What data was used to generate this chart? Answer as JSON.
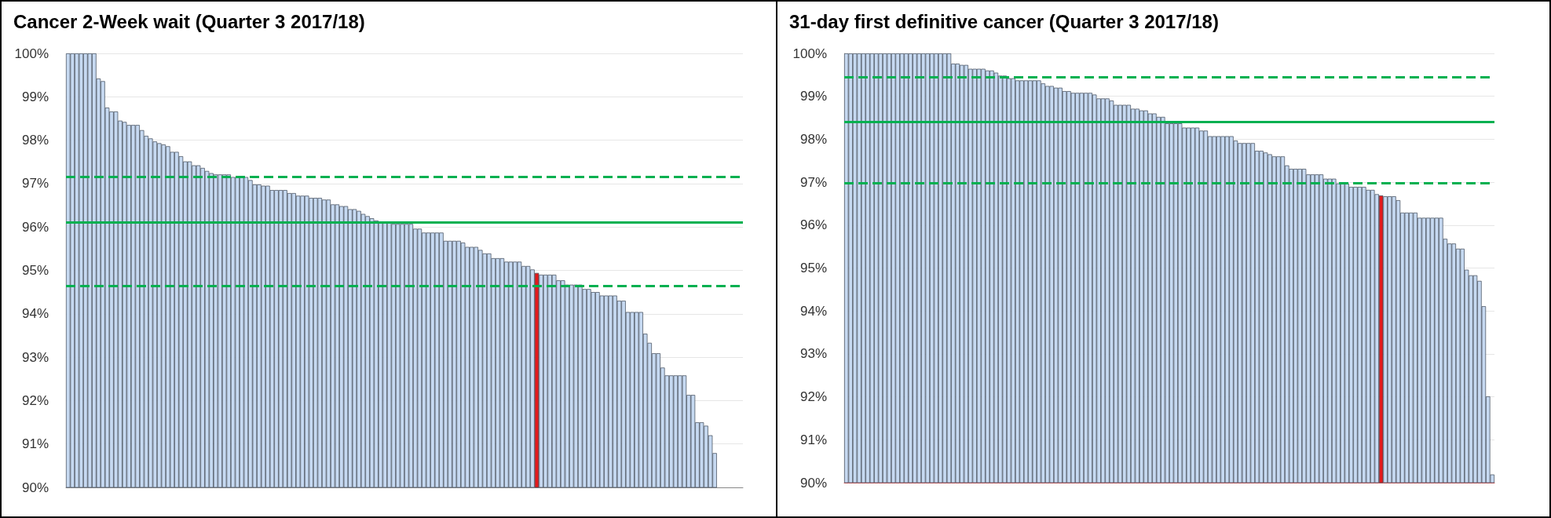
{
  "chart_data": [
    {
      "type": "bar",
      "title": "Cancer 2-Week wait (Quarter 3 2017/18)",
      "categories": [
        null,
        null,
        null,
        null,
        null,
        null,
        null,
        null,
        null,
        null,
        null,
        null,
        null,
        null,
        null,
        null,
        null,
        null,
        null,
        null,
        null,
        null,
        null,
        null,
        null,
        null,
        null,
        null,
        null,
        null,
        null,
        null,
        null,
        null,
        null,
        null,
        null,
        null,
        null,
        null,
        null,
        null,
        null,
        null,
        null,
        null,
        null,
        null,
        null,
        null,
        null,
        null,
        null,
        null,
        null,
        null,
        null,
        null,
        null,
        null,
        null,
        null,
        null,
        null,
        null,
        null,
        null,
        null,
        null,
        null,
        null,
        null,
        null,
        null,
        null,
        null,
        null,
        null,
        null,
        null,
        null,
        null,
        null,
        null,
        null,
        null,
        null,
        null,
        null,
        null,
        null,
        null,
        null,
        null,
        null,
        null,
        null,
        null,
        null,
        null,
        null,
        null,
        null,
        null,
        null,
        null,
        null,
        null,
        null,
        null,
        null,
        null,
        null,
        null,
        null,
        null,
        null,
        null,
        null,
        null,
        null,
        null,
        null,
        null,
        null,
        null,
        null,
        null,
        null,
        null,
        null,
        null,
        null,
        null,
        null,
        null,
        null,
        null,
        null,
        null,
        null,
        null,
        null,
        null,
        null,
        null,
        null,
        null,
        null,
        null,
        null,
        null,
        null,
        null,
        null,
        null
      ],
      "values": [
        100,
        100,
        100,
        100,
        100,
        100,
        100,
        99.42,
        99.36,
        98.75,
        98.66,
        98.66,
        98.45,
        98.42,
        98.35,
        98.35,
        98.35,
        98.23,
        98.1,
        98.04,
        97.97,
        97.93,
        97.9,
        97.86,
        97.73,
        97.73,
        97.63,
        97.51,
        97.51,
        97.42,
        97.42,
        97.36,
        97.29,
        97.24,
        97.21,
        97.21,
        97.21,
        97.21,
        97.15,
        97.15,
        97.15,
        97.15,
        97.08,
        96.98,
        96.98,
        96.95,
        96.95,
        96.85,
        96.85,
        96.85,
        96.85,
        96.78,
        96.78,
        96.72,
        96.72,
        96.72,
        96.67,
        96.67,
        96.67,
        96.63,
        96.63,
        96.52,
        96.52,
        96.48,
        96.48,
        96.41,
        96.41,
        96.37,
        96.3,
        96.25,
        96.2,
        96.15,
        96.12,
        96.12,
        96.12,
        96.07,
        96.07,
        96.07,
        96.07,
        96.07,
        95.96,
        95.96,
        95.87,
        95.87,
        95.87,
        95.87,
        95.87,
        95.68,
        95.68,
        95.68,
        95.68,
        95.64,
        95.54,
        95.54,
        95.54,
        95.47,
        95.39,
        95.39,
        95.28,
        95.28,
        95.28,
        95.2,
        95.2,
        95.2,
        95.2,
        95.1,
        95.1,
        95.02,
        94.94,
        94.9,
        94.9,
        94.9,
        94.9,
        94.77,
        94.77,
        94.67,
        94.67,
        94.67,
        94.67,
        94.57,
        94.57,
        94.5,
        94.5,
        94.42,
        94.42,
        94.42,
        94.42,
        94.3,
        94.3,
        94.04,
        94.04,
        94.04,
        94.04,
        93.54,
        93.33,
        93.09,
        93.09,
        92.76,
        92.58,
        92.58,
        92.58,
        92.58,
        92.58,
        92.13,
        92.13,
        91.5,
        91.5,
        91.42,
        91.2,
        90.79,
        null,
        null,
        null,
        null,
        null,
        null
      ],
      "colors": [
        "#c6d9f1",
        "#c6d9f1",
        "#c6d9f1",
        "#c6d9f1",
        "#c6d9f1",
        "#c6d9f1",
        "#c6d9f1",
        "#c6d9f1",
        "#c6d9f1",
        "#c6d9f1",
        "#c6d9f1",
        "#c6d9f1",
        "#c6d9f1",
        "#c6d9f1",
        "#c6d9f1",
        "#c6d9f1",
        "#c6d9f1",
        "#c6d9f1",
        "#c6d9f1",
        "#c6d9f1",
        "#c6d9f1",
        "#c6d9f1",
        "#c6d9f1",
        "#c6d9f1",
        "#c6d9f1",
        "#c6d9f1",
        "#c6d9f1",
        "#c6d9f1",
        "#c6d9f1",
        "#c6d9f1",
        "#c6d9f1",
        "#c6d9f1",
        "#c6d9f1",
        "#c6d9f1",
        "#c6d9f1",
        "#c6d9f1",
        "#c6d9f1",
        "#c6d9f1",
        "#c6d9f1",
        "#c6d9f1",
        "#c6d9f1",
        "#c6d9f1",
        "#c6d9f1",
        "#c6d9f1",
        "#c6d9f1",
        "#c6d9f1",
        "#c6d9f1",
        "#c6d9f1",
        "#c6d9f1",
        "#c6d9f1",
        "#c6d9f1",
        "#c6d9f1",
        "#c6d9f1",
        "#c6d9f1",
        "#c6d9f1",
        "#c6d9f1",
        "#c6d9f1",
        "#c6d9f1",
        "#c6d9f1",
        "#c6d9f1",
        "#c6d9f1",
        "#c6d9f1",
        "#c6d9f1",
        "#c6d9f1",
        "#c6d9f1",
        "#c6d9f1",
        "#c6d9f1",
        "#c6d9f1",
        "#c6d9f1",
        "#c6d9f1",
        "#c6d9f1",
        "#c6d9f1",
        "#c6d9f1",
        "#c6d9f1",
        "#c6d9f1",
        "#c6d9f1",
        "#c6d9f1",
        "#c6d9f1",
        "#c6d9f1",
        "#c6d9f1",
        "#c6d9f1",
        "#c6d9f1",
        "#c6d9f1",
        "#c6d9f1",
        "#c6d9f1",
        "#c6d9f1",
        "#c6d9f1",
        "#c6d9f1",
        "#c6d9f1",
        "#c6d9f1",
        "#c6d9f1",
        "#c6d9f1",
        "#c6d9f1",
        "#c6d9f1",
        "#c6d9f1",
        "#c6d9f1",
        "#c6d9f1",
        "#c6d9f1",
        "#c6d9f1",
        "#c6d9f1",
        "#c6d9f1",
        "#c6d9f1",
        "#c6d9f1",
        "#c6d9f1",
        "#c6d9f1",
        "#c6d9f1",
        "#c6d9f1",
        "#c6d9f1",
        "#e31a1c",
        "#c6d9f1",
        "#c6d9f1",
        "#c6d9f1",
        "#c6d9f1",
        "#c6d9f1",
        "#c6d9f1",
        "#c6d9f1",
        "#c6d9f1",
        "#c6d9f1",
        "#c6d9f1",
        "#c6d9f1",
        "#c6d9f1",
        "#c6d9f1",
        "#c6d9f1",
        "#c6d9f1",
        "#c6d9f1",
        "#c6d9f1",
        "#c6d9f1",
        "#c6d9f1",
        "#c6d9f1",
        "#c6d9f1",
        "#c6d9f1",
        "#c6d9f1",
        "#c6d9f1",
        "#c6d9f1",
        "#c6d9f1",
        "#c6d9f1",
        "#c6d9f1",
        "#c6d9f1",
        "#c6d9f1",
        "#c6d9f1",
        "#c6d9f1",
        "#c6d9f1",
        "#c6d9f1",
        "#c6d9f1",
        "#c6d9f1",
        "#c6d9f1",
        "#c6d9f1",
        "#c6d9f1",
        "#c6d9f1",
        "#c6d9f1",
        "#c6d9f1",
        "#c6d9f1",
        "#c6d9f1",
        "#c6d9f1",
        "#c6d9f1",
        "#c6d9f1"
      ],
      "ylim": [
        90,
        100
      ],
      "yticks": [
        {
          "value": 90,
          "label": "90%"
        },
        {
          "value": 91,
          "label": "91%"
        },
        {
          "value": 92,
          "label": "92%"
        },
        {
          "value": 93,
          "label": "93%"
        },
        {
          "value": 94,
          "label": "94%"
        },
        {
          "value": 95,
          "label": "95%"
        },
        {
          "value": 96,
          "label": "96%"
        },
        {
          "value": 97,
          "label": "97%"
        },
        {
          "value": 98,
          "label": "98%"
        },
        {
          "value": 99,
          "label": "99%"
        },
        {
          "value": 100,
          "label": "100%"
        }
      ],
      "grid": "y",
      "ref_lines": [
        {
          "axis": "y",
          "value": 97.15,
          "color": "#00b050",
          "line_style": "dashed"
        },
        {
          "axis": "y",
          "value": 96.1,
          "color": "#00b050",
          "line_style": "solid"
        },
        {
          "axis": "y",
          "value": 94.65,
          "color": "#00b050",
          "line_style": "dashed"
        }
      ]
    },
    {
      "type": "bar",
      "title": "31-day first definitive cancer (Quarter 3 2017/18)",
      "categories": [
        null,
        null,
        null,
        null,
        null,
        null,
        null,
        null,
        null,
        null,
        null,
        null,
        null,
        null,
        null,
        null,
        null,
        null,
        null,
        null,
        null,
        null,
        null,
        null,
        null,
        null,
        null,
        null,
        null,
        null,
        null,
        null,
        null,
        null,
        null,
        null,
        null,
        null,
        null,
        null,
        null,
        null,
        null,
        null,
        null,
        null,
        null,
        null,
        null,
        null,
        null,
        null,
        null,
        null,
        null,
        null,
        null,
        null,
        null,
        null,
        null,
        null,
        null,
        null,
        null,
        null,
        null,
        null,
        null,
        null,
        null,
        null,
        null,
        null,
        null,
        null,
        null,
        null,
        null,
        null,
        null,
        null,
        null,
        null,
        null,
        null,
        null,
        null,
        null,
        null,
        null,
        null,
        null,
        null,
        null,
        null,
        null,
        null,
        null,
        null,
        null,
        null,
        null,
        null,
        null,
        null,
        null,
        null,
        null,
        null,
        null,
        null,
        null,
        null,
        null,
        null,
        null,
        null,
        null,
        null,
        null,
        null,
        null,
        null,
        null,
        null,
        null,
        null,
        null,
        null,
        null,
        null,
        null,
        null,
        null,
        null,
        null,
        null,
        null,
        null,
        null,
        null,
        null,
        null,
        null,
        null,
        null,
        null,
        null,
        null,
        null,
        null
      ],
      "values": [
        100,
        100,
        100,
        100,
        100,
        100,
        100,
        100,
        100,
        100,
        100,
        100,
        100,
        100,
        100,
        100,
        100,
        100,
        100,
        100,
        100,
        100,
        100,
        100,
        100,
        99.76,
        99.76,
        99.73,
        99.73,
        99.64,
        99.64,
        99.64,
        99.64,
        99.6,
        99.6,
        99.55,
        99.48,
        99.48,
        99.42,
        99.42,
        99.37,
        99.37,
        99.37,
        99.37,
        99.37,
        99.37,
        99.3,
        99.24,
        99.24,
        99.2,
        99.2,
        99.12,
        99.12,
        99.08,
        99.08,
        99.08,
        99.08,
        99.08,
        99.04,
        98.95,
        98.95,
        98.95,
        98.9,
        98.8,
        98.8,
        98.8,
        98.8,
        98.71,
        98.71,
        98.67,
        98.67,
        98.6,
        98.6,
        98.52,
        98.52,
        98.37,
        98.37,
        98.37,
        98.37,
        98.27,
        98.27,
        98.27,
        98.27,
        98.2,
        98.2,
        98.07,
        98.07,
        98.07,
        98.07,
        98.07,
        98.07,
        97.97,
        97.91,
        97.91,
        97.91,
        97.91,
        97.73,
        97.73,
        97.69,
        97.65,
        97.6,
        97.6,
        97.6,
        97.39,
        97.31,
        97.31,
        97.31,
        97.31,
        97.18,
        97.18,
        97.18,
        97.18,
        97.08,
        97.08,
        97.08,
        96.97,
        96.97,
        96.97,
        96.89,
        96.89,
        96.89,
        96.89,
        96.82,
        96.82,
        96.72,
        96.69,
        96.67,
        96.67,
        96.67,
        96.58,
        96.29,
        96.29,
        96.29,
        96.29,
        96.17,
        96.17,
        96.17,
        96.17,
        96.17,
        96.17,
        95.68,
        95.57,
        95.57,
        95.45,
        95.45,
        94.96,
        94.83,
        94.83,
        94.7,
        94.11,
        92.01,
        90.19
      ],
      "colors": [
        "#c6d9f1",
        "#c6d9f1",
        "#c6d9f1",
        "#c6d9f1",
        "#c6d9f1",
        "#c6d9f1",
        "#c6d9f1",
        "#c6d9f1",
        "#c6d9f1",
        "#c6d9f1",
        "#c6d9f1",
        "#c6d9f1",
        "#c6d9f1",
        "#c6d9f1",
        "#c6d9f1",
        "#c6d9f1",
        "#c6d9f1",
        "#c6d9f1",
        "#c6d9f1",
        "#c6d9f1",
        "#c6d9f1",
        "#c6d9f1",
        "#c6d9f1",
        "#c6d9f1",
        "#c6d9f1",
        "#c6d9f1",
        "#c6d9f1",
        "#c6d9f1",
        "#c6d9f1",
        "#c6d9f1",
        "#c6d9f1",
        "#c6d9f1",
        "#c6d9f1",
        "#c6d9f1",
        "#c6d9f1",
        "#c6d9f1",
        "#c6d9f1",
        "#c6d9f1",
        "#c6d9f1",
        "#c6d9f1",
        "#c6d9f1",
        "#c6d9f1",
        "#c6d9f1",
        "#c6d9f1",
        "#c6d9f1",
        "#c6d9f1",
        "#c6d9f1",
        "#c6d9f1",
        "#c6d9f1",
        "#c6d9f1",
        "#c6d9f1",
        "#c6d9f1",
        "#c6d9f1",
        "#c6d9f1",
        "#c6d9f1",
        "#c6d9f1",
        "#c6d9f1",
        "#c6d9f1",
        "#c6d9f1",
        "#c6d9f1",
        "#c6d9f1",
        "#c6d9f1",
        "#c6d9f1",
        "#c6d9f1",
        "#c6d9f1",
        "#c6d9f1",
        "#c6d9f1",
        "#c6d9f1",
        "#c6d9f1",
        "#c6d9f1",
        "#c6d9f1",
        "#c6d9f1",
        "#c6d9f1",
        "#c6d9f1",
        "#c6d9f1",
        "#c6d9f1",
        "#c6d9f1",
        "#c6d9f1",
        "#c6d9f1",
        "#c6d9f1",
        "#c6d9f1",
        "#c6d9f1",
        "#c6d9f1",
        "#c6d9f1",
        "#c6d9f1",
        "#c6d9f1",
        "#c6d9f1",
        "#c6d9f1",
        "#c6d9f1",
        "#c6d9f1",
        "#c6d9f1",
        "#c6d9f1",
        "#c6d9f1",
        "#c6d9f1",
        "#c6d9f1",
        "#c6d9f1",
        "#c6d9f1",
        "#c6d9f1",
        "#c6d9f1",
        "#c6d9f1",
        "#c6d9f1",
        "#c6d9f1",
        "#c6d9f1",
        "#c6d9f1",
        "#c6d9f1",
        "#c6d9f1",
        "#c6d9f1",
        "#c6d9f1",
        "#c6d9f1",
        "#c6d9f1",
        "#c6d9f1",
        "#c6d9f1",
        "#c6d9f1",
        "#c6d9f1",
        "#c6d9f1",
        "#c6d9f1",
        "#c6d9f1",
        "#c6d9f1",
        "#c6d9f1",
        "#c6d9f1",
        "#c6d9f1",
        "#c6d9f1",
        "#c6d9f1",
        "#c6d9f1",
        "#c6d9f1",
        "#e31a1c",
        "#c6d9f1",
        "#c6d9f1",
        "#c6d9f1",
        "#c6d9f1",
        "#c6d9f1",
        "#c6d9f1",
        "#c6d9f1",
        "#c6d9f1",
        "#c6d9f1",
        "#c6d9f1",
        "#c6d9f1",
        "#c6d9f1",
        "#c6d9f1",
        "#c6d9f1",
        "#c6d9f1",
        "#c6d9f1",
        "#c6d9f1",
        "#c6d9f1",
        "#c6d9f1",
        "#c6d9f1",
        "#c6d9f1",
        "#c6d9f1",
        "#c6d9f1",
        "#c6d9f1",
        "#c6d9f1",
        "#c6d9f1"
      ],
      "ylim": [
        90,
        100
      ],
      "yticks": [
        {
          "value": 90,
          "label": "90%"
        },
        {
          "value": 91,
          "label": "91%"
        },
        {
          "value": 92,
          "label": "92%"
        },
        {
          "value": 93,
          "label": "93%"
        },
        {
          "value": 94,
          "label": "94%"
        },
        {
          "value": 95,
          "label": "95%"
        },
        {
          "value": 96,
          "label": "96%"
        },
        {
          "value": 97,
          "label": "97%"
        },
        {
          "value": 98,
          "label": "98%"
        },
        {
          "value": 99,
          "label": "99%"
        },
        {
          "value": 100,
          "label": "100%"
        }
      ],
      "grid": "y",
      "ref_lines": [
        {
          "axis": "y",
          "value": 99.45,
          "color": "#00b050",
          "line_style": "dashed"
        },
        {
          "axis": "y",
          "value": 98.41,
          "color": "#00b050",
          "line_style": "solid"
        },
        {
          "axis": "y",
          "value": 96.98,
          "color": "#00b050",
          "line_style": "dashed"
        }
      ]
    }
  ]
}
